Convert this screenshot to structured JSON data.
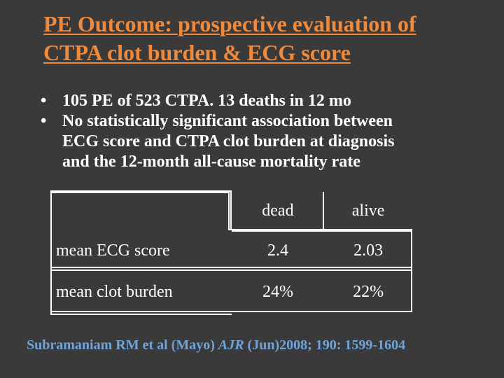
{
  "title": {
    "line1": "PE Outcome: prospective evaluation of",
    "line2": "CTPA clot burden & ECG score"
  },
  "bullets": [
    {
      "marker": "•",
      "lines": [
        "105 PE of 523 CTPA. 13 deaths in 12 mo"
      ]
    },
    {
      "marker": "•",
      "lines": [
        "No statistically significant association between",
        "ECG score and CTPA clot burden at diagnosis",
        "and the 12-month all-cause mortality rate"
      ]
    }
  ],
  "table": {
    "headers": [
      "",
      "dead",
      "alive"
    ],
    "rows": [
      [
        "mean ECG score",
        "2.4",
        "2.03"
      ],
      [
        "mean clot burden",
        "24%",
        "22%"
      ]
    ]
  },
  "citation": {
    "prefix": "Subramaniam RM et al (Mayo) ",
    "journal": "AJR",
    "suffix": " (Jun)2008; 190: 1599-1604"
  },
  "colors": {
    "background": "#3a3a3a",
    "title": "#ef8a3c",
    "text": "#ffffff",
    "citation": "#6fa3dc"
  }
}
